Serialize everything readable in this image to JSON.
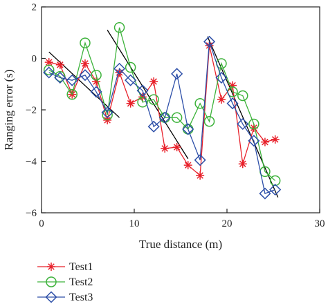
{
  "chart_data": {
    "type": "line",
    "xlabel": "True distance (m)",
    "ylabel": "Ranging error (s)",
    "xlim": [
      0,
      30
    ],
    "ylim": [
      -6,
      2
    ],
    "x_ticks": [
      0,
      10,
      20,
      30
    ],
    "y_ticks": [
      2,
      0,
      -2,
      -4,
      -6
    ],
    "grid": false,
    "legend": "below-left",
    "series": [
      {
        "name": "Test1",
        "color": "#e8202a",
        "marker": "asterisk",
        "x": [
          0.8,
          2.0,
          3.3,
          4.7,
          5.9,
          7.1,
          8.4,
          9.6,
          10.9,
          12.1,
          13.3,
          14.6,
          15.8,
          17.1,
          18.1,
          19.4,
          20.6,
          21.7,
          22.9,
          24.1,
          25.2
        ],
        "y": [
          -0.15,
          -0.25,
          -1.4,
          -0.2,
          -0.9,
          -2.4,
          -0.55,
          -1.75,
          -1.5,
          -0.9,
          -3.5,
          -3.45,
          -4.15,
          -4.55,
          0.5,
          -1.6,
          -1.05,
          -4.1,
          -2.7,
          -3.25,
          -3.15
        ]
      },
      {
        "name": "Test2",
        "color": "#3cb23a",
        "marker": "circle",
        "x": [
          0.8,
          2.0,
          3.3,
          4.7,
          5.9,
          7.1,
          8.4,
          9.6,
          10.9,
          12.1,
          13.3,
          14.6,
          15.8,
          17.1,
          18.1,
          19.4,
          20.6,
          21.7,
          22.9,
          24.1,
          25.2
        ],
        "y": [
          -0.45,
          -0.7,
          -1.4,
          0.6,
          -0.65,
          -2.2,
          1.2,
          -0.35,
          -1.7,
          -1.6,
          -2.3,
          -2.3,
          -2.75,
          -1.75,
          -2.45,
          -0.2,
          -1.3,
          -1.45,
          -2.55,
          -4.4,
          -4.75
        ]
      },
      {
        "name": "Test3",
        "color": "#2d4fa8",
        "marker": "diamond",
        "x": [
          0.8,
          2.0,
          3.3,
          4.7,
          5.9,
          7.1,
          8.4,
          9.6,
          10.9,
          12.1,
          13.3,
          14.6,
          15.8,
          17.1,
          18.1,
          19.4,
          20.6,
          21.7,
          22.9,
          24.1,
          25.2
        ],
        "y": [
          -0.55,
          -0.75,
          -0.85,
          -0.65,
          -1.3,
          -2.1,
          -0.4,
          -0.85,
          -1.25,
          -2.65,
          -2.3,
          -0.6,
          -2.75,
          -3.95,
          0.65,
          -0.75,
          -1.75,
          -2.55,
          -3.2,
          -5.25,
          -5.1
        ]
      }
    ],
    "trend_lines": [
      {
        "x1": 0.8,
        "y1": 0.25,
        "x2": 8.4,
        "y2": -2.3
      },
      {
        "x1": 7.1,
        "y1": 1.1,
        "x2": 15.8,
        "y2": -3.9
      },
      {
        "x1": 17.9,
        "y1": 0.85,
        "x2": 25.5,
        "y2": -5.4
      }
    ]
  }
}
